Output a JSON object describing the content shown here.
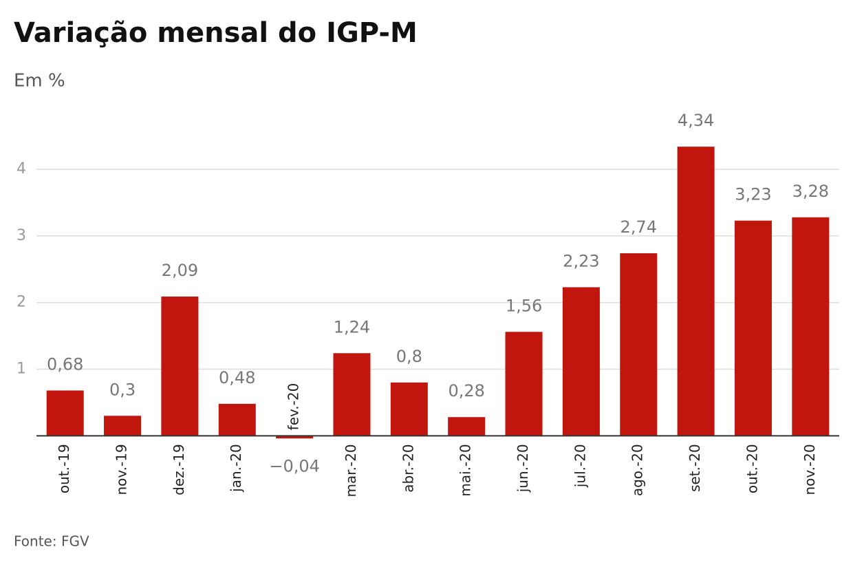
{
  "chart_data": {
    "type": "bar",
    "title": "Variação mensal do IGP-M",
    "subtitle": "Em %",
    "source": "Fonte: FGV",
    "categories": [
      "out.-19",
      "nov.-19",
      "dez.-19",
      "jan.-20",
      "fev.-20",
      "mar.-20",
      "abr.-20",
      "mai.-20",
      "jun.-20",
      "jul.-20",
      "ago.-20",
      "set.-20",
      "out.-20",
      "nov.-20"
    ],
    "values": [
      0.68,
      0.3,
      2.09,
      0.48,
      -0.04,
      1.24,
      0.8,
      0.28,
      1.56,
      2.23,
      2.74,
      4.34,
      3.23,
      3.28
    ],
    "value_labels": [
      "0,68",
      "0,3",
      "2,09",
      "0,48",
      "−0,04",
      "1,24",
      "0,8",
      "0,28",
      "1,56",
      "2,23",
      "2,74",
      "4,34",
      "3,23",
      "3,28"
    ],
    "color": "#c0160e",
    "ylim": [
      -0.1,
      4.6
    ],
    "yticks": [
      1,
      2,
      3,
      4
    ],
    "grid": true
  }
}
